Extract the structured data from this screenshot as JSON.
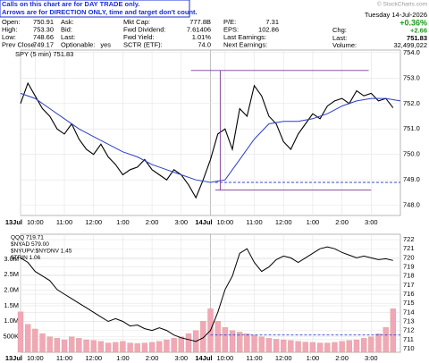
{
  "header": {
    "notice": [
      "Calls on this chart are for DAY TRADE only.",
      "Arrows are for DIRECTION ONLY, time and target don't count."
    ],
    "stats": [
      [
        [
          "Open:",
          "750.91"
        ],
        [
          "Ask:"
        ],
        [
          "Mkt Cap:",
          "777.8B"
        ],
        [
          "P/E:",
          "7.31"
        ]
      ],
      [
        [
          "High:",
          "753.30"
        ],
        [
          "Bid:"
        ],
        [
          "Fwd Dividend:",
          "7.61406"
        ],
        [
          "EPS:",
          "102.86"
        ]
      ],
      [
        [
          "Low:",
          "748.66"
        ],
        [
          "Last:"
        ],
        [
          "Fwd Yield:",
          "1.01%"
        ],
        [
          "Last Earnings:"
        ]
      ],
      [
        [
          "Prev Close:",
          "749.17"
        ],
        [
          "Optionable:",
          "yes"
        ],
        [
          "SCTR (ETF):",
          "74.0"
        ],
        [
          "Next Earnings:"
        ]
      ]
    ],
    "watermark": "© StockCharts.com",
    "date": "Tuesday 14-Jul-2026",
    "change_label": "Chg:",
    "change_pct": "+0.36%",
    "change": "+2.66",
    "last_label": "Last:",
    "last": "751.83",
    "volume_label": "Volume:",
    "volume": "32,499,022"
  },
  "chart_data": [
    {
      "type": "line",
      "title": "SPY (5 min) 751.83",
      "grid": true,
      "xlim": [
        0,
        780
      ],
      "ylim": [
        747.6,
        754.1
      ],
      "xticks": [
        {
          "value": 0,
          "label": "13Jul"
        },
        {
          "value": 30,
          "label": "10:00"
        },
        {
          "value": 90,
          "label": "11:00"
        },
        {
          "value": 150,
          "label": "12:00"
        },
        {
          "value": 210,
          "label": "1:00"
        },
        {
          "value": 270,
          "label": "2:00"
        },
        {
          "value": 330,
          "label": "3:00"
        },
        {
          "value": 390,
          "label": "14Jul"
        },
        {
          "value": 420,
          "label": "10:00"
        },
        {
          "value": 480,
          "label": "11:00"
        },
        {
          "value": 540,
          "label": "12:00"
        },
        {
          "value": 600,
          "label": "1:00"
        },
        {
          "value": 660,
          "label": "2:00"
        },
        {
          "value": 720,
          "label": "3:00"
        }
      ],
      "yticks": [
        {
          "value": 748,
          "label": "748.0"
        },
        {
          "value": 749,
          "label": "749.0"
        },
        {
          "value": 750,
          "label": "750.0"
        },
        {
          "value": 751,
          "label": "751.0"
        },
        {
          "value": 752,
          "label": "752.0"
        },
        {
          "value": 753,
          "label": "753.0"
        },
        {
          "value": 754,
          "label": "754.0"
        }
      ],
      "series": [
        {
          "color": "#000000",
          "x": [
            0,
            15,
            30,
            45,
            60,
            75,
            90,
            105,
            120,
            135,
            150,
            165,
            180,
            195,
            210,
            225,
            240,
            255,
            270,
            285,
            300,
            315,
            330,
            345,
            360,
            375,
            390,
            405,
            420,
            435,
            450,
            465,
            480,
            495,
            510,
            525,
            540,
            555,
            570,
            585,
            600,
            615,
            630,
            645,
            660,
            675,
            690,
            705,
            720,
            735,
            750,
            765
          ],
          "values": [
            752.0,
            752.8,
            752.3,
            751.8,
            751.5,
            751.0,
            750.8,
            751.2,
            750.6,
            750.2,
            750.0,
            750.4,
            749.9,
            749.6,
            749.2,
            749.4,
            749.5,
            749.8,
            749.4,
            749.2,
            749.0,
            749.4,
            749.2,
            748.8,
            748.3,
            749.0,
            749.8,
            750.8,
            751.0,
            750.2,
            751.8,
            751.5,
            752.7,
            752.3,
            751.5,
            751.2,
            750.5,
            750.2,
            750.8,
            751.2,
            751.6,
            751.4,
            751.9,
            752.1,
            752.2,
            752.0,
            752.5,
            752.3,
            752.4,
            752.1,
            752.2,
            751.83
          ]
        },
        {
          "color": "#2b3fc7",
          "x": [
            0,
            30,
            60,
            90,
            120,
            150,
            180,
            210,
            240,
            270,
            300,
            330,
            360,
            390,
            420,
            450,
            480,
            510,
            540,
            570,
            600,
            630,
            660,
            690,
            720,
            750,
            780
          ],
          "values": [
            752.4,
            752.2,
            751.8,
            751.4,
            751.0,
            750.7,
            750.4,
            750.1,
            749.9,
            749.6,
            749.4,
            749.2,
            749.0,
            748.9,
            749.0,
            749.8,
            750.6,
            751.2,
            751.3,
            751.3,
            751.4,
            751.6,
            751.9,
            752.1,
            752.2,
            752.2,
            752.1
          ]
        }
      ],
      "hlines": [
        {
          "y": 753.3,
          "x": [
            350,
            715
          ],
          "color": "#7a3b9e"
        },
        {
          "y": 748.6,
          "x": [
            400,
            720
          ],
          "color": "#7a3b9e"
        },
        {
          "y": 748.9,
          "x": [
            400,
            780
          ],
          "color": "#3344cc",
          "dashed": true
        }
      ],
      "vlines": [
        {
          "x": 410,
          "y": [
            748.6,
            753.3
          ],
          "color": "#7a3b9e"
        }
      ]
    },
    {
      "type": "line",
      "grid": true,
      "legend": [
        "QQQ 719.71",
        "$NYAD 579.00",
        "$NYUPV:$NYDNV 1.45",
        "$TRIN 1.06"
      ],
      "xlim": [
        0,
        780
      ],
      "ylim": [
        0,
        3800000
      ],
      "y2lim": [
        709.6,
        722.6
      ],
      "xticks": [
        {
          "value": 0,
          "label": "13Jul"
        },
        {
          "value": 30,
          "label": "10:00"
        },
        {
          "value": 90,
          "label": "11:00"
        },
        {
          "value": 150,
          "label": "12:00"
        },
        {
          "value": 210,
          "label": "1:00"
        },
        {
          "value": 270,
          "label": "2:00"
        },
        {
          "value": 330,
          "label": "3:00"
        },
        {
          "value": 390,
          "label": "14Jul"
        },
        {
          "value": 420,
          "label": "10:00"
        },
        {
          "value": 480,
          "label": "11:00"
        },
        {
          "value": 540,
          "label": "12:00"
        },
        {
          "value": 600,
          "label": "1:00"
        },
        {
          "value": 660,
          "label": "2:00"
        },
        {
          "value": 720,
          "label": "3:00"
        }
      ],
      "yticks": [
        {
          "value": 500000,
          "label": "500K"
        },
        {
          "value": 1000000,
          "label": "1.0M"
        },
        {
          "value": 1500000,
          "label": "1.5M"
        },
        {
          "value": 2000000,
          "label": "2.0M"
        },
        {
          "value": 2500000,
          "label": "2.5M"
        },
        {
          "value": 3000000,
          "label": "3.0M"
        }
      ],
      "y2ticks": [
        710,
        711,
        712,
        713,
        714,
        715,
        716,
        717,
        718,
        719,
        720,
        721,
        722
      ],
      "series": [
        {
          "type": "bar",
          "color": "#f2a7b8",
          "x": [
            0,
            15,
            30,
            45,
            60,
            75,
            90,
            105,
            120,
            135,
            150,
            165,
            180,
            195,
            210,
            225,
            240,
            255,
            270,
            285,
            300,
            315,
            330,
            345,
            360,
            375,
            390,
            405,
            420,
            435,
            450,
            465,
            480,
            495,
            510,
            525,
            540,
            555,
            570,
            585,
            600,
            615,
            630,
            645,
            660,
            675,
            690,
            705,
            720,
            735,
            750,
            765
          ],
          "values": [
            1300000,
            900000,
            750000,
            600000,
            500000,
            450000,
            400000,
            500000,
            450000,
            400000,
            380000,
            350000,
            300000,
            320000,
            350000,
            300000,
            280000,
            300000,
            320000,
            350000,
            400000,
            450000,
            500000,
            600000,
            700000,
            1000000,
            1400000,
            1000000,
            800000,
            700000,
            650000,
            600000,
            550000,
            500000,
            450000,
            420000,
            400000,
            380000,
            350000,
            330000,
            320000,
            300000,
            300000,
            320000,
            350000,
            380000,
            400000,
            450000,
            500000,
            600000,
            800000,
            1400000
          ]
        },
        {
          "axis": "y2",
          "color": "#000000",
          "x": [
            0,
            15,
            30,
            45,
            60,
            75,
            90,
            105,
            120,
            135,
            150,
            165,
            180,
            195,
            210,
            225,
            240,
            255,
            270,
            285,
            300,
            315,
            330,
            345,
            360,
            375,
            390,
            405,
            420,
            435,
            450,
            465,
            480,
            495,
            510,
            525,
            540,
            555,
            570,
            585,
            600,
            615,
            630,
            645,
            660,
            675,
            690,
            705,
            720,
            735,
            750,
            765
          ],
          "values": [
            720.0,
            719.5,
            718.5,
            718.0,
            717.5,
            716.5,
            716.0,
            715.5,
            715.0,
            714.5,
            714.0,
            713.5,
            713.0,
            713.3,
            713.0,
            712.5,
            712.6,
            712.2,
            712.0,
            712.3,
            712.0,
            711.5,
            711.2,
            711.0,
            710.8,
            711.2,
            712.0,
            714.0,
            716.5,
            718.0,
            720.5,
            721.0,
            719.5,
            718.5,
            719.0,
            719.8,
            720.2,
            720.0,
            719.5,
            720.0,
            720.5,
            721.0,
            721.2,
            721.0,
            720.6,
            720.3,
            720.0,
            720.2,
            720.0,
            719.8,
            719.9,
            719.71
          ]
        }
      ],
      "hlines": [
        {
          "y": 711.5,
          "x": [
            390,
            780
          ],
          "color": "#3344cc",
          "dashed": true,
          "axis": "y2"
        }
      ]
    }
  ]
}
